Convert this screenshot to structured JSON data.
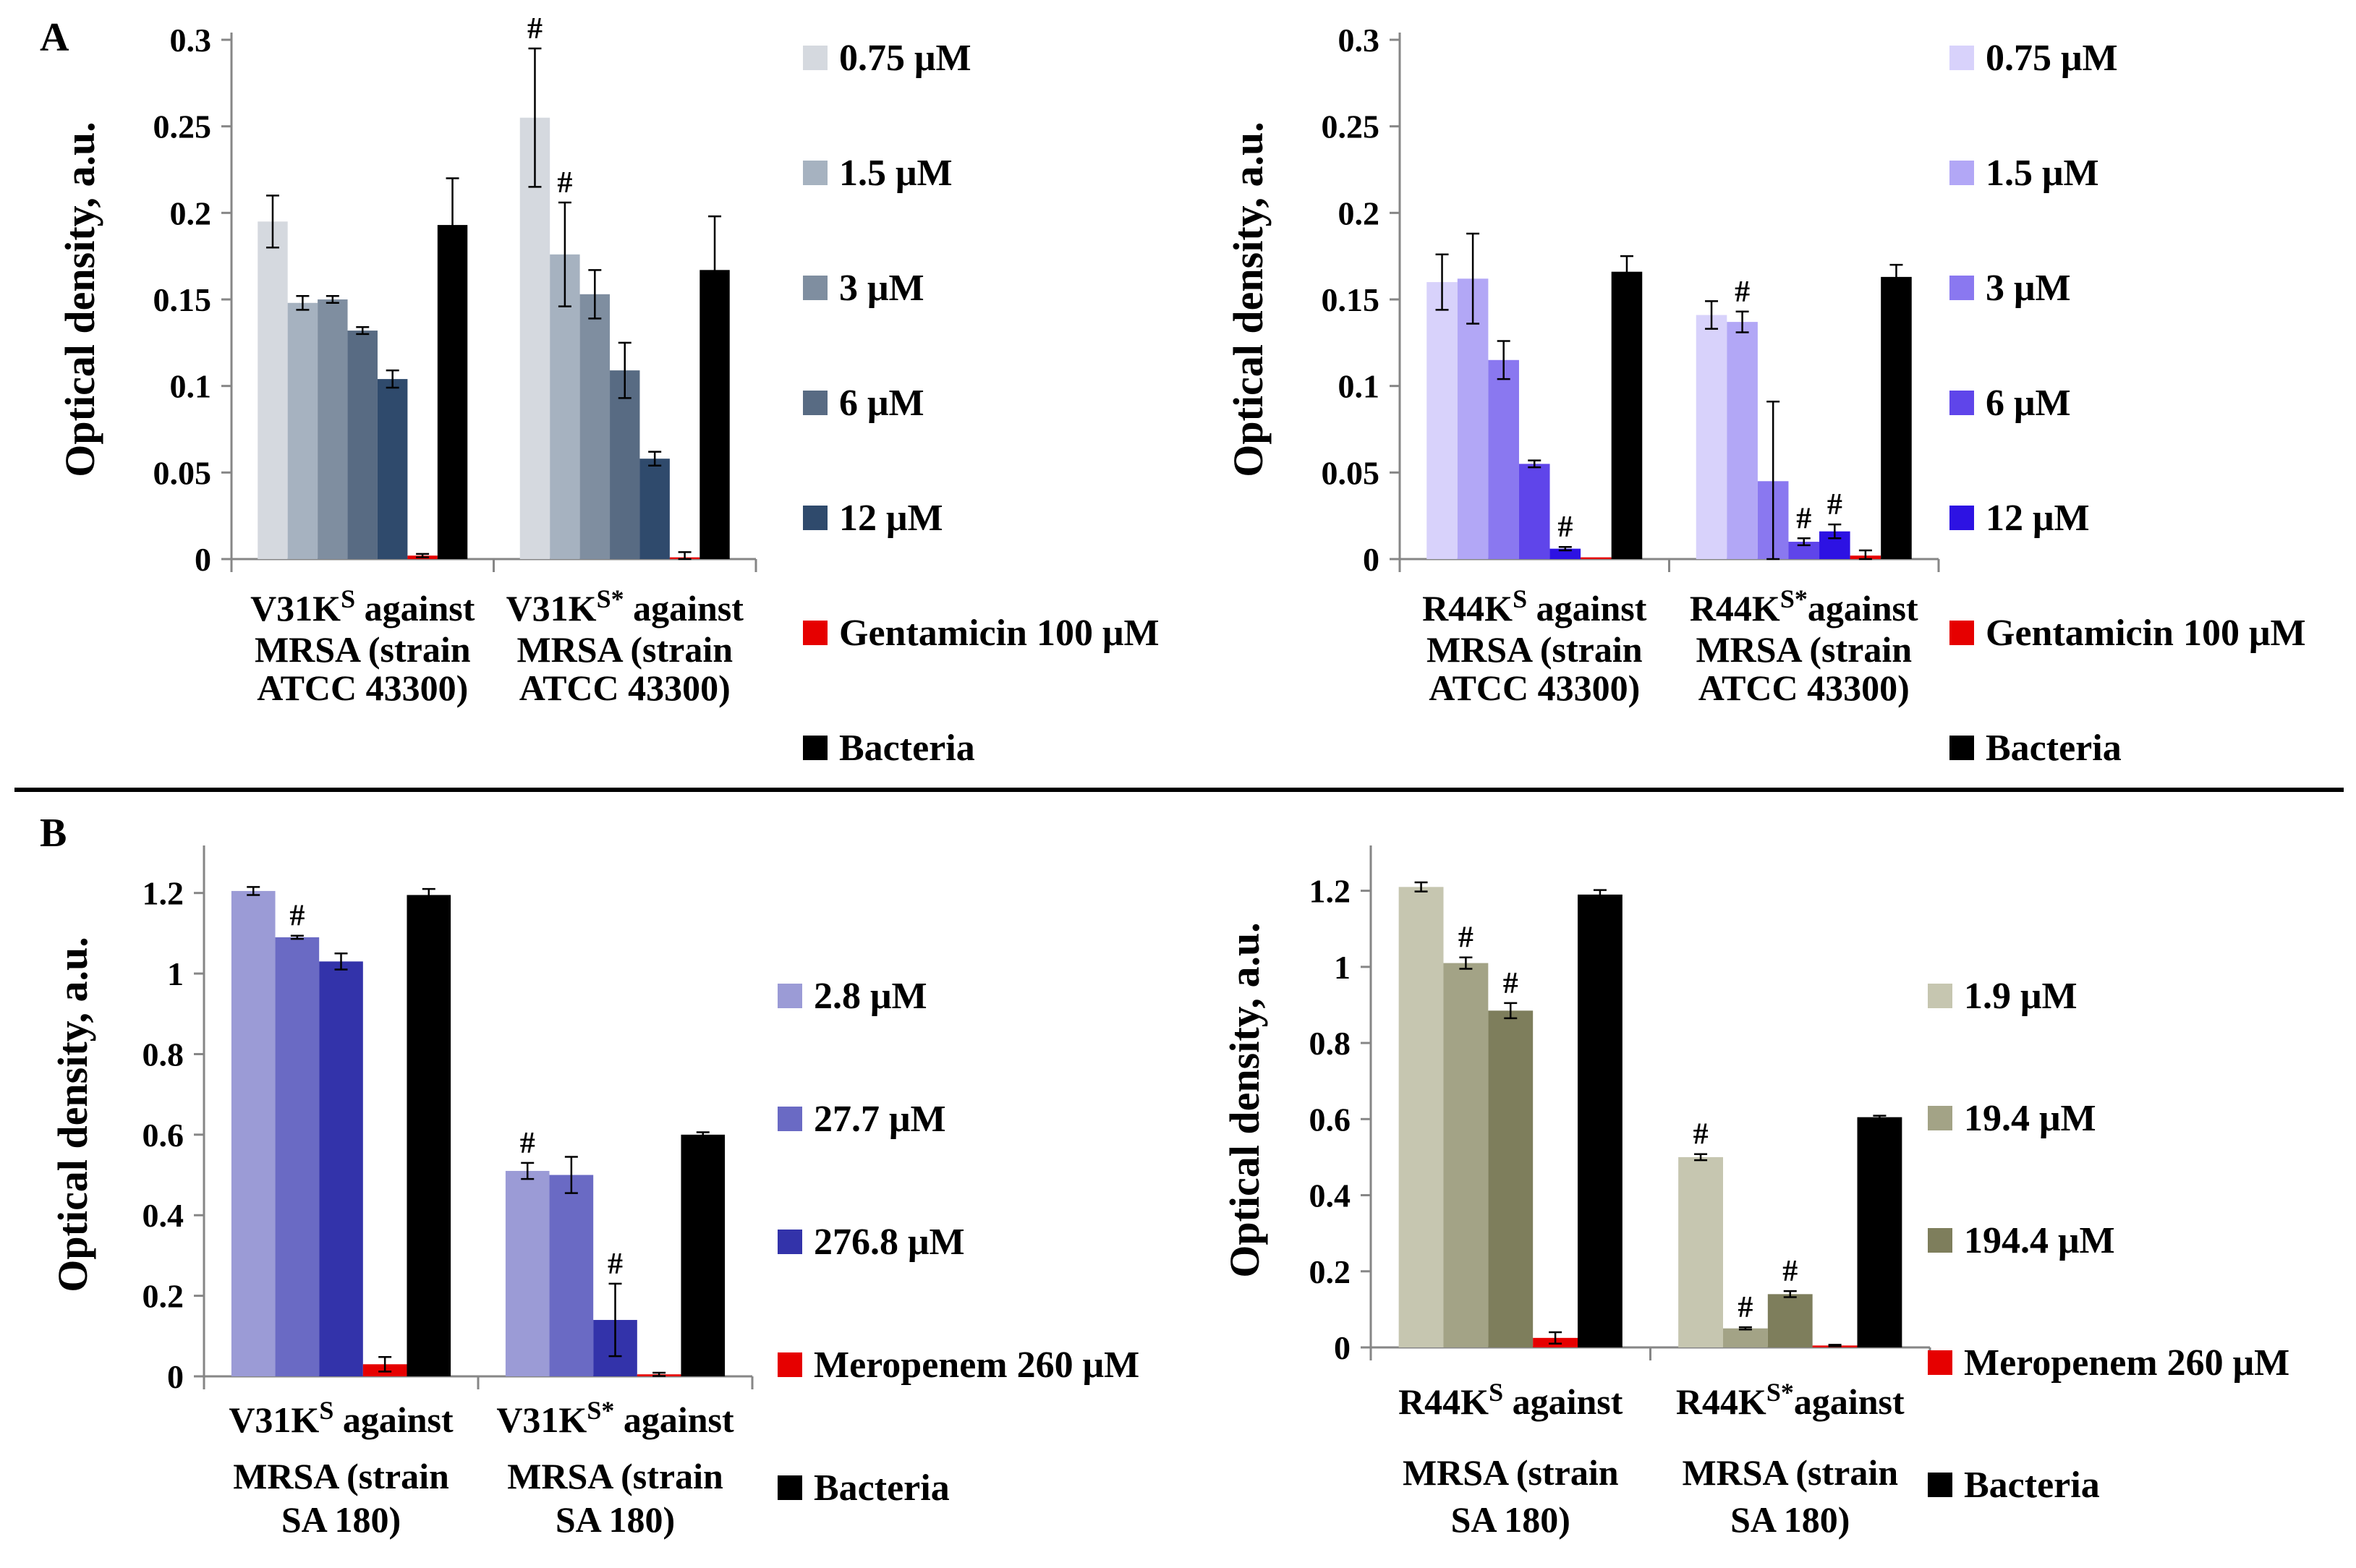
{
  "panels": [
    {
      "label": "A"
    },
    {
      "label": "B"
    }
  ],
  "chart_data": [
    {
      "type": "bar",
      "panel": "A",
      "ylabel": "Optical density, a.u.",
      "ylim": [
        0,
        0.3
      ],
      "yticks": [
        "0",
        "0.05",
        "0.1",
        "0.15",
        "0.2",
        "0.25",
        "0.3"
      ],
      "categories": [
        {
          "name": "V31K",
          "sup": "S",
          "rest": " against",
          "line2": "MRSA (strain",
          "line3": "ATCC 43300)"
        },
        {
          "name": "V31K",
          "sup": "S*",
          "rest": " against",
          "line2": "MRSA (strain",
          "line3": "ATCC 43300)"
        }
      ],
      "series": [
        {
          "name": "0.75 μM",
          "color": "#d5d9df",
          "values": [
            0.195,
            0.255
          ],
          "errors": [
            0.015,
            0.04
          ],
          "marks": [
            "",
            "#"
          ]
        },
        {
          "name": "1.5 μM",
          "color": "#a6b2c0",
          "values": [
            0.148,
            0.176
          ],
          "errors": [
            0.004,
            0.03
          ],
          "marks": [
            "",
            "#"
          ]
        },
        {
          "name": "3 μM",
          "color": "#7f8ea0",
          "values": [
            0.15,
            0.153
          ],
          "errors": [
            0.002,
            0.014
          ],
          "marks": [
            "",
            ""
          ]
        },
        {
          "name": "6 μM",
          "color": "#586b83",
          "values": [
            0.132,
            0.109
          ],
          "errors": [
            0.002,
            0.016
          ],
          "marks": [
            "",
            ""
          ]
        },
        {
          "name": "12 μM",
          "color": "#2f4a6c",
          "values": [
            0.104,
            0.058
          ],
          "errors": [
            0.005,
            0.004
          ],
          "marks": [
            "",
            ""
          ]
        },
        {
          "name": "Gentamicin 100 μM",
          "color": "#e60000",
          "values": [
            0.002,
            0.001
          ],
          "errors": [
            0.001,
            0.003
          ],
          "marks": [
            "",
            ""
          ]
        },
        {
          "name": "Bacteria",
          "color": "#000000",
          "values": [
            0.193,
            0.167
          ],
          "errors": [
            0.027,
            0.031
          ],
          "marks": [
            "",
            ""
          ]
        }
      ]
    },
    {
      "type": "bar",
      "panel": "A",
      "ylabel": "Optical density, a.u.",
      "ylim": [
        0,
        0.3
      ],
      "yticks": [
        "0",
        "0.05",
        "0.1",
        "0.15",
        "0.2",
        "0.25",
        "0.3"
      ],
      "categories": [
        {
          "name": "R44K",
          "sup": "S",
          "rest": " against",
          "line2": "MRSA (strain",
          "line3": "ATCC 43300)"
        },
        {
          "name": "R44K",
          "sup": "S*",
          "rest": "against",
          "line2": "MRSA (strain",
          "line3": "ATCC 43300)"
        }
      ],
      "series": [
        {
          "name": "0.75 μM",
          "color": "#d8d2fb",
          "values": [
            0.16,
            0.141
          ],
          "errors": [
            0.016,
            0.008
          ],
          "marks": [
            "",
            ""
          ]
        },
        {
          "name": "1.5 μM",
          "color": "#b2a7f6",
          "values": [
            0.162,
            0.137
          ],
          "errors": [
            0.026,
            0.006
          ],
          "marks": [
            "",
            "#"
          ]
        },
        {
          "name": "3 μM",
          "color": "#8a78f0",
          "values": [
            0.115,
            0.045
          ],
          "errors": [
            0.011,
            0.046
          ],
          "marks": [
            "",
            ""
          ]
        },
        {
          "name": "6 μM",
          "color": "#5f45ea",
          "values": [
            0.055,
            0.01
          ],
          "errors": [
            0.002,
            0.002
          ],
          "marks": [
            "",
            "#"
          ]
        },
        {
          "name": "12 μM",
          "color": "#2d12e3",
          "values": [
            0.006,
            0.016
          ],
          "errors": [
            0.001,
            0.004
          ],
          "marks": [
            "#",
            "#"
          ]
        },
        {
          "name": "Gentamicin 100 μM",
          "color": "#e60000",
          "values": [
            0.001,
            0.002
          ],
          "errors": [
            0.0,
            0.003
          ],
          "marks": [
            "",
            ""
          ]
        },
        {
          "name": "Bacteria",
          "color": "#000000",
          "values": [
            0.166,
            0.163
          ],
          "errors": [
            0.009,
            0.007
          ],
          "marks": [
            "",
            ""
          ]
        }
      ]
    },
    {
      "type": "bar",
      "panel": "B",
      "ylabel": "Optical density, a.u.",
      "ylim": [
        0,
        1.3
      ],
      "yticks": [
        "0",
        "0.2",
        "0.4",
        "0.6",
        "0.8",
        "1",
        "1.2"
      ],
      "categories": [
        {
          "name": "V31K",
          "sup": "S",
          "rest": " against",
          "line2": "MRSA (strain",
          "line3": "SA 180)"
        },
        {
          "name": "V31K",
          "sup": "S*",
          "rest": " against",
          "line2": "MRSA (strain",
          "line3": "SA 180)"
        }
      ],
      "series": [
        {
          "name": "2.8 μM",
          "color": "#9b9bd6",
          "values": [
            1.205,
            0.51
          ],
          "errors": [
            0.01,
            0.02
          ],
          "marks": [
            "",
            "#"
          ]
        },
        {
          "name": "27.7 μM",
          "color": "#6a6ac4",
          "values": [
            1.09,
            0.5
          ],
          "errors": [
            0.004,
            0.045
          ],
          "marks": [
            "#",
            ""
          ]
        },
        {
          "name": "276.8 μM",
          "color": "#3333aa",
          "values": [
            1.03,
            0.14
          ],
          "errors": [
            0.02,
            0.09
          ],
          "marks": [
            "",
            "#"
          ]
        },
        {
          "name": "Meropenem 260 μM",
          "color": "#e60000",
          "values": [
            0.03,
            0.005
          ],
          "errors": [
            0.018,
            0.004
          ],
          "marks": [
            "",
            ""
          ]
        },
        {
          "name": "Bacteria",
          "color": "#000000",
          "values": [
            1.195,
            0.6
          ],
          "errors": [
            0.015,
            0.006
          ],
          "marks": [
            "",
            ""
          ]
        }
      ]
    },
    {
      "type": "bar",
      "panel": "B",
      "ylabel": "Optical density, a.u.",
      "ylim": [
        0,
        1.3
      ],
      "yticks": [
        "0",
        "0.2",
        "0.4",
        "0.6",
        "0.8",
        "1",
        "1.2"
      ],
      "categories": [
        {
          "name": "R44K",
          "sup": "S",
          "rest": " against",
          "line2": "MRSA (strain",
          "line3": "SA 180)"
        },
        {
          "name": "R44K",
          "sup": "S*",
          "rest": "against",
          "line2": "MRSA (strain",
          "line3": "SA 180)"
        }
      ],
      "series": [
        {
          "name": "1.9 μM",
          "color": "#c6c6b0",
          "values": [
            1.21,
            0.5
          ],
          "errors": [
            0.012,
            0.008
          ],
          "marks": [
            "",
            "#"
          ]
        },
        {
          "name": "19.4 μM",
          "color": "#a3a386",
          "values": [
            1.01,
            0.05
          ],
          "errors": [
            0.015,
            0.003
          ],
          "marks": [
            "#",
            "#"
          ]
        },
        {
          "name": "194.4 μM",
          "color": "#7e7e5c",
          "values": [
            0.885,
            0.14
          ],
          "errors": [
            0.02,
            0.008
          ],
          "marks": [
            "#",
            "#"
          ]
        },
        {
          "name": "Meropenem 260 μM",
          "color": "#e60000",
          "values": [
            0.025,
            0.005
          ],
          "errors": [
            0.015,
            0.002
          ],
          "marks": [
            "",
            ""
          ]
        },
        {
          "name": "Bacteria",
          "color": "#000000",
          "values": [
            1.19,
            0.605
          ],
          "errors": [
            0.012,
            0.004
          ],
          "marks": [
            "",
            ""
          ]
        }
      ]
    }
  ]
}
